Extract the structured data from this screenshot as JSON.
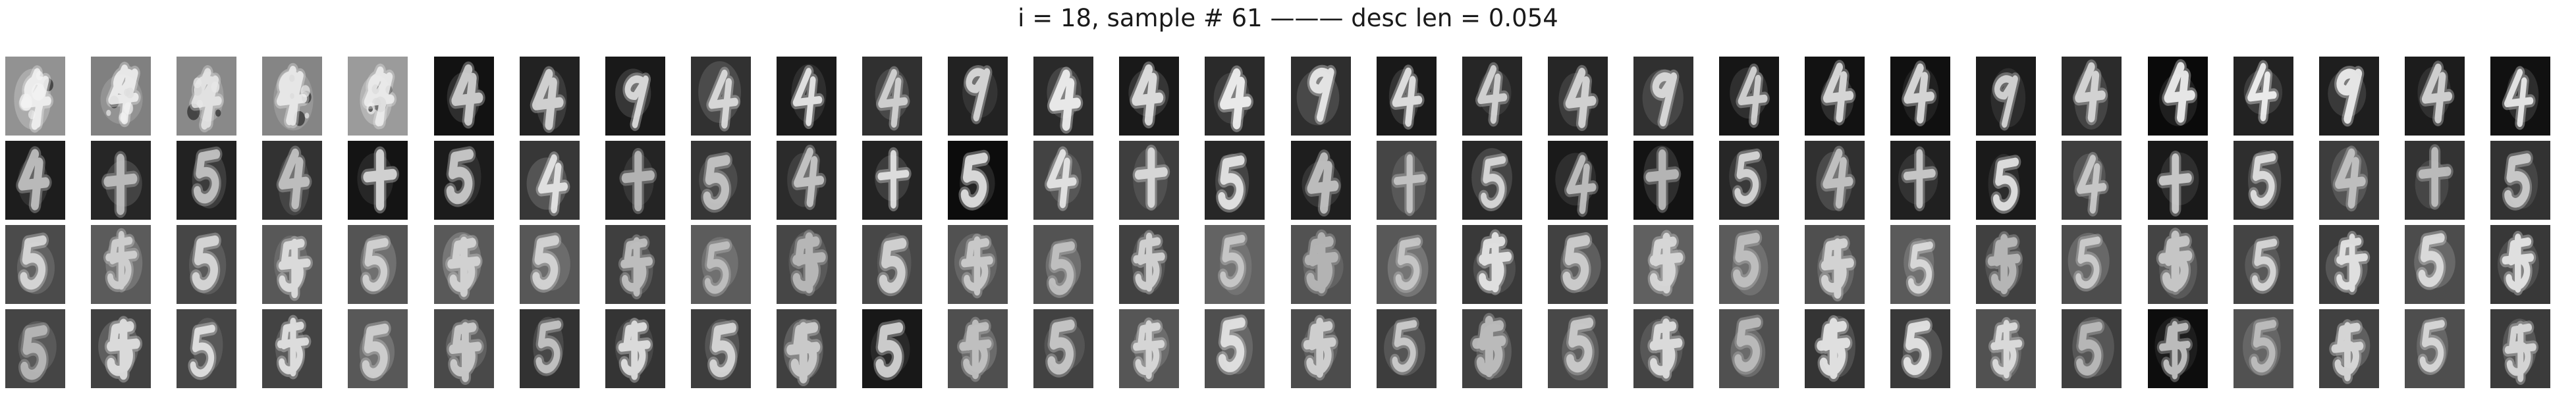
{
  "figure": {
    "title": "i = 18, sample # 61 ——— desc len = 0.054",
    "rows": 4,
    "columns": 30
  },
  "panels": [
    {
      "row": 0,
      "label": "",
      "glyph": "blob"
    },
    {
      "row": 1,
      "label": "",
      "glyph": "4"
    },
    {
      "row": 2,
      "label": "",
      "glyph": "5"
    },
    {
      "row": 3,
      "label": "",
      "glyph": "5"
    }
  ],
  "colors": {
    "background": "#ffffff",
    "stroke_light": "#f2f2f2"
  }
}
